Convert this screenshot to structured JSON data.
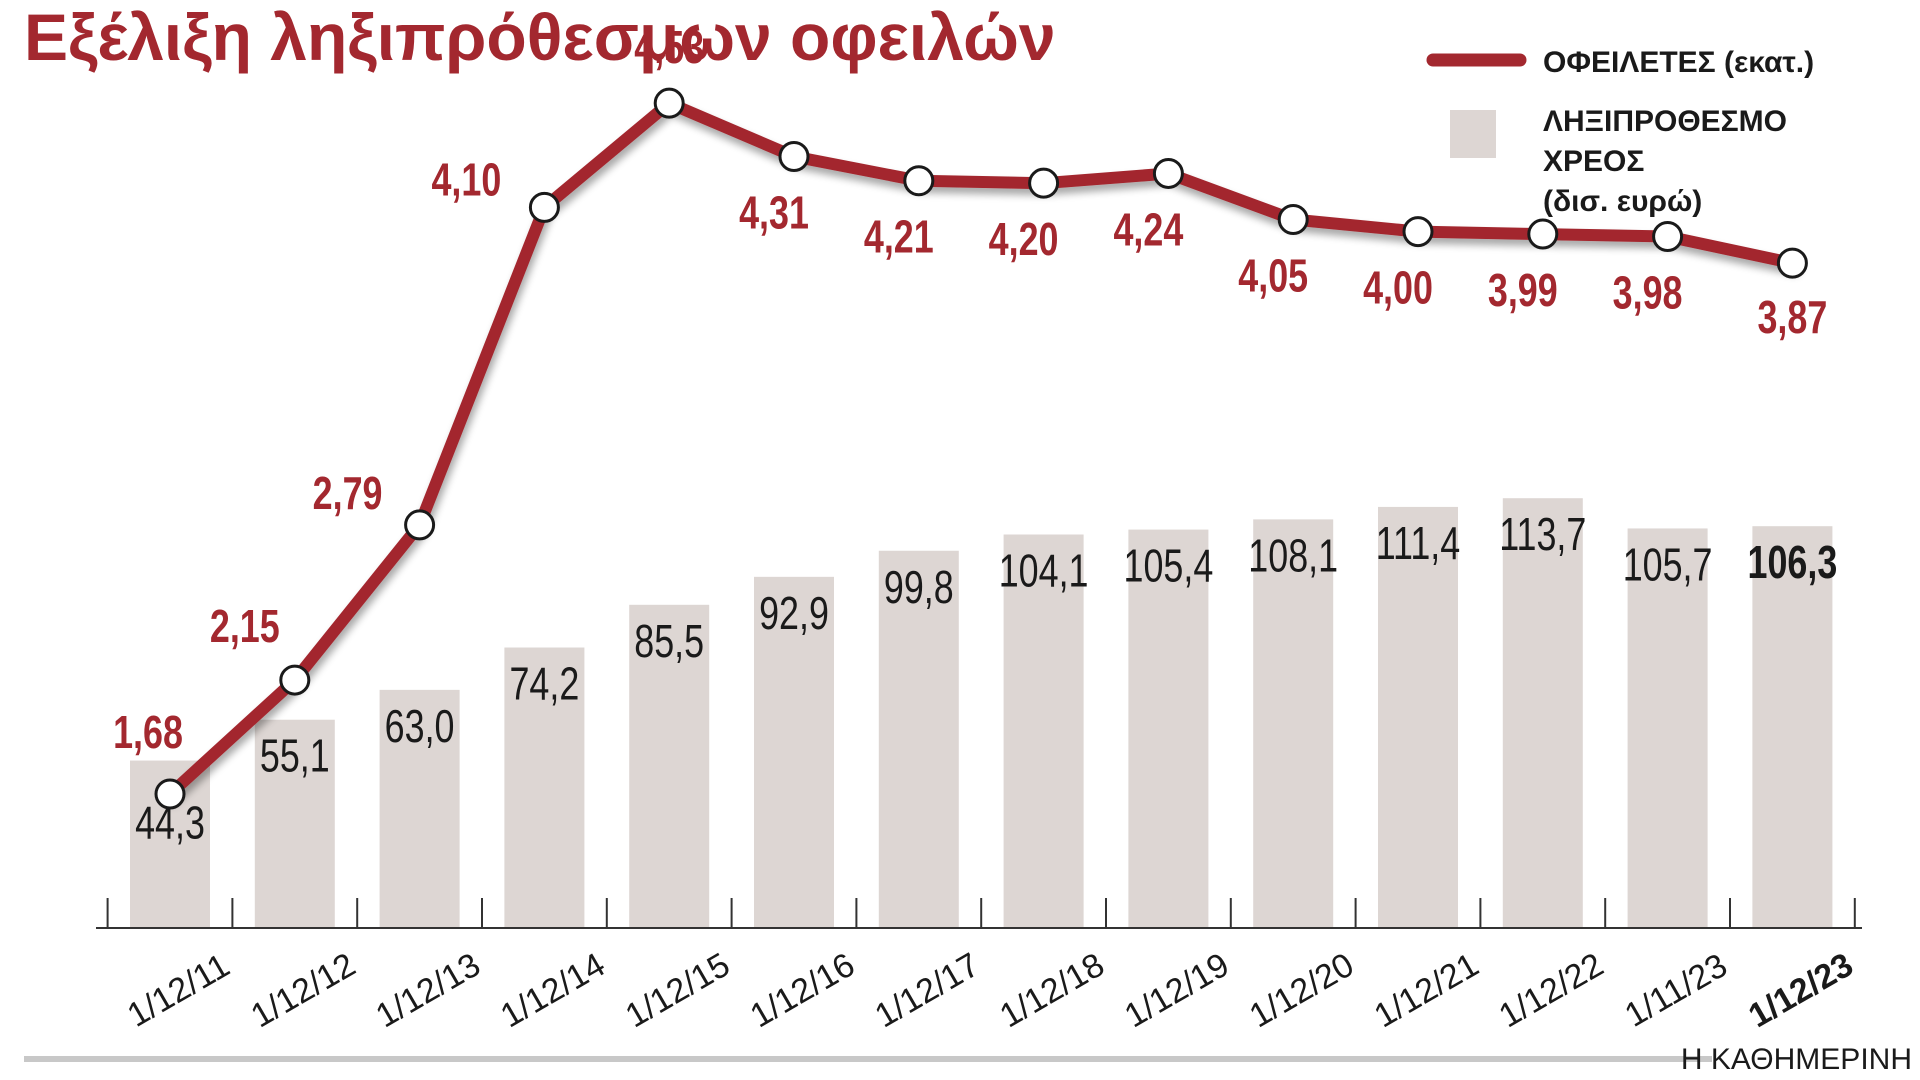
{
  "chart_data": {
    "type": "bar+line",
    "title": "Εξέλιξη ληξιπρόθεσμων οφειλών",
    "categories": [
      "1/12/11",
      "1/12/12",
      "1/12/13",
      "1/12/14",
      "1/12/15",
      "1/12/16",
      "1/12/17",
      "1/12/18",
      "1/12/19",
      "1/12/20",
      "1/12/21",
      "1/12/22",
      "1/11/23",
      "1/12/23"
    ],
    "series": [
      {
        "name": "ΟΦΕΙΛΕΤΕΣ (εκατ.)",
        "kind": "line",
        "values": [
          1.68,
          2.15,
          2.79,
          4.1,
          4.53,
          4.31,
          4.21,
          4.2,
          4.24,
          4.05,
          4.0,
          3.99,
          3.98,
          3.87
        ],
        "labels": [
          "1,68",
          "2,15",
          "2,79",
          "4,10",
          "4,53",
          "4,31",
          "4,21",
          "4,20",
          "4,24",
          "4,05",
          "4,00",
          "3,99",
          "3,98",
          "3,87"
        ],
        "color": "#a3282f"
      },
      {
        "name": "ΛΗΞΙΠΡΟΘΕΣΜΟ ΧΡΕΟΣ (δισ. ευρώ)",
        "kind": "bar",
        "values": [
          44.3,
          55.1,
          63.0,
          74.2,
          85.5,
          92.9,
          99.8,
          104.1,
          105.4,
          108.1,
          111.4,
          113.7,
          105.7,
          106.3
        ],
        "labels": [
          "44,3",
          "55,1",
          "63,0",
          "74,2",
          "85,5",
          "92,9",
          "99,8",
          "104,1",
          "105,4",
          "108,1",
          "111,4",
          "113,7",
          "105,7",
          "106,3"
        ],
        "color": "#ddd6d3"
      }
    ],
    "legend": {
      "position": "top-right",
      "line_label": "ΟΦΕΙΛΕΤΕΣ (εκατ.)",
      "bar_label_lines": [
        "ΛΗΞΙΠΡΟΘΕΣΜΟ",
        "ΧΡΕΟΣ",
        "(δισ. ευρώ)"
      ]
    },
    "highlight_index": 13,
    "grid": false
  },
  "source": "Η ΚΑΘΗΜΕΡΙΝΗ",
  "colors": {
    "title": "#a3282f",
    "line": "#a3282f",
    "bar": "#ddd6d3",
    "text": "#1a1a1a",
    "rule": "#c8c8c8"
  }
}
